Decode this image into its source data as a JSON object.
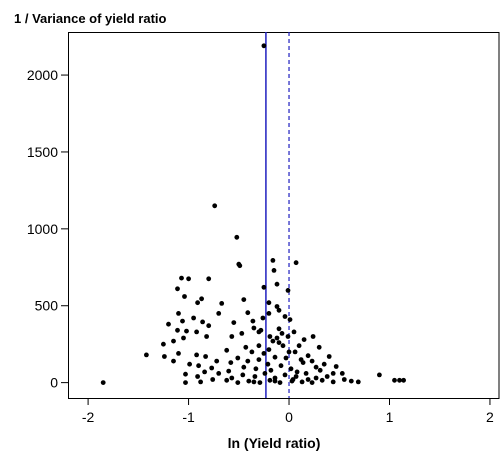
{
  "chart_data": {
    "type": "scatter",
    "title": "1 / Variance of yield ratio",
    "xlabel": "ln (Yield ratio)",
    "ylabel": "",
    "xlim": [
      -2.2,
      2.1
    ],
    "ylim": [
      -100,
      2280
    ],
    "x_ticks": [
      -2,
      -1,
      0,
      1,
      2
    ],
    "x_tick_labels": [
      "-2",
      "-1",
      "0",
      "1",
      "2"
    ],
    "y_ticks": [
      0,
      500,
      1000,
      1500,
      2000
    ],
    "y_tick_labels": [
      "0",
      "500",
      "1000",
      "1500",
      "2000"
    ],
    "grid": false,
    "colors": {
      "points": "#000000",
      "reference_lines": "#1f1fbf"
    },
    "reference_lines": [
      {
        "x": -0.23,
        "style": "solid"
      },
      {
        "x": 0,
        "style": "dashed"
      }
    ],
    "series": [
      {
        "points": [
          [
            -0.25,
            2190
          ],
          [
            -0.74,
            1150
          ],
          [
            -0.52,
            945
          ],
          [
            -0.5,
            770
          ],
          [
            -0.49,
            760
          ],
          [
            -0.16,
            795
          ],
          [
            0.07,
            780
          ],
          [
            -0.15,
            730
          ],
          [
            -1.07,
            680
          ],
          [
            -1.0,
            675
          ],
          [
            -0.8,
            675
          ],
          [
            -0.25,
            620
          ],
          [
            -0.12,
            640
          ],
          [
            -0.01,
            600
          ],
          [
            -1.11,
            610
          ],
          [
            -0.87,
            545
          ],
          [
            -0.45,
            540
          ],
          [
            -0.2,
            520
          ],
          [
            -1.04,
            560
          ],
          [
            -0.91,
            520
          ],
          [
            -0.67,
            515
          ],
          [
            -0.12,
            495
          ],
          [
            -0.1,
            470
          ],
          [
            -1.1,
            450
          ],
          [
            -0.7,
            450
          ],
          [
            -0.41,
            455
          ],
          [
            -0.2,
            450
          ],
          [
            -0.95,
            420
          ],
          [
            -1.06,
            400
          ],
          [
            -0.86,
            395
          ],
          [
            -0.55,
            390
          ],
          [
            -0.36,
            400
          ],
          [
            -0.26,
            420
          ],
          [
            -0.04,
            430
          ],
          [
            0.01,
            410
          ],
          [
            -1.2,
            380
          ],
          [
            -1.11,
            340
          ],
          [
            -1.02,
            335
          ],
          [
            -0.92,
            330
          ],
          [
            -0.8,
            370
          ],
          [
            -0.35,
            355
          ],
          [
            -0.28,
            340
          ],
          [
            -0.1,
            350
          ],
          [
            -0.07,
            320
          ],
          [
            0.05,
            330
          ],
          [
            -1.25,
            250
          ],
          [
            -1.15,
            270
          ],
          [
            -1.05,
            290
          ],
          [
            -0.82,
            300
          ],
          [
            -0.57,
            300
          ],
          [
            -0.47,
            320
          ],
          [
            -0.3,
            330
          ],
          [
            -0.19,
            300
          ],
          [
            -0.16,
            270
          ],
          [
            -0.12,
            290
          ],
          [
            -0.01,
            300
          ],
          [
            0.15,
            280
          ],
          [
            0.24,
            300
          ],
          [
            -1.42,
            180
          ],
          [
            -1.24,
            170
          ],
          [
            -1.1,
            190
          ],
          [
            -0.92,
            180
          ],
          [
            -0.83,
            170
          ],
          [
            -0.51,
            160
          ],
          [
            -0.41,
            140
          ],
          [
            -0.37,
            200
          ],
          [
            -0.25,
            190
          ],
          [
            -0.14,
            165
          ],
          [
            -0.03,
            160
          ],
          [
            0.06,
            200
          ],
          [
            0.19,
            175
          ],
          [
            0.4,
            170
          ],
          [
            -1.15,
            140
          ],
          [
            -0.99,
            120
          ],
          [
            -0.9,
            110
          ],
          [
            -0.77,
            95
          ],
          [
            -0.58,
            130
          ],
          [
            -0.45,
            100
          ],
          [
            -0.33,
            90
          ],
          [
            -0.21,
            120
          ],
          [
            -0.08,
            110
          ],
          [
            0.02,
            90
          ],
          [
            0.14,
            130
          ],
          [
            0.27,
            100
          ],
          [
            0.35,
            120
          ],
          [
            0.47,
            105
          ],
          [
            0.53,
            60
          ],
          [
            0.9,
            50
          ],
          [
            -1.03,
            55
          ],
          [
            -0.91,
            40
          ],
          [
            -0.7,
            60
          ],
          [
            -0.57,
            30
          ],
          [
            -0.46,
            50
          ],
          [
            -0.34,
            40
          ],
          [
            -0.24,
            60
          ],
          [
            -0.14,
            30
          ],
          [
            -0.04,
            50
          ],
          [
            0.07,
            40
          ],
          [
            0.17,
            60
          ],
          [
            0.27,
            30
          ],
          [
            0.38,
            40
          ],
          [
            0.55,
            20
          ],
          [
            0.62,
            10
          ],
          [
            0.69,
            5
          ],
          [
            -1.85,
            0
          ],
          [
            -1.03,
            0
          ],
          [
            -0.88,
            5
          ],
          [
            -0.76,
            20
          ],
          [
            -0.62,
            15
          ],
          [
            -0.51,
            0
          ],
          [
            -0.4,
            10
          ],
          [
            -0.29,
            0
          ],
          [
            -0.19,
            15
          ],
          [
            -0.09,
            0
          ],
          [
            0.03,
            10
          ],
          [
            0.13,
            5
          ],
          [
            0.23,
            0
          ],
          [
            0.33,
            15
          ],
          [
            0.44,
            5
          ],
          [
            1.05,
            15
          ],
          [
            1.1,
            15
          ],
          [
            1.14,
            15
          ],
          [
            -0.1,
            260
          ],
          [
            -0.06,
            240
          ],
          [
            0.1,
            240
          ],
          [
            -0.3,
            240
          ],
          [
            -0.43,
            230
          ],
          [
            0.3,
            230
          ],
          [
            0.0,
            200
          ],
          [
            -0.2,
            215
          ],
          [
            -0.62,
            210
          ],
          [
            0.12,
            150
          ],
          [
            -0.3,
            150
          ],
          [
            0.23,
            140
          ],
          [
            -0.72,
            140
          ],
          [
            0.31,
            80
          ],
          [
            -0.18,
            80
          ],
          [
            0.08,
            70
          ],
          [
            -0.6,
            75
          ],
          [
            0.44,
            60
          ],
          [
            -0.84,
            70
          ],
          [
            0.04,
            20
          ],
          [
            -0.14,
            10
          ],
          [
            0.19,
            20
          ],
          [
            -0.35,
            5
          ]
        ]
      }
    ]
  }
}
